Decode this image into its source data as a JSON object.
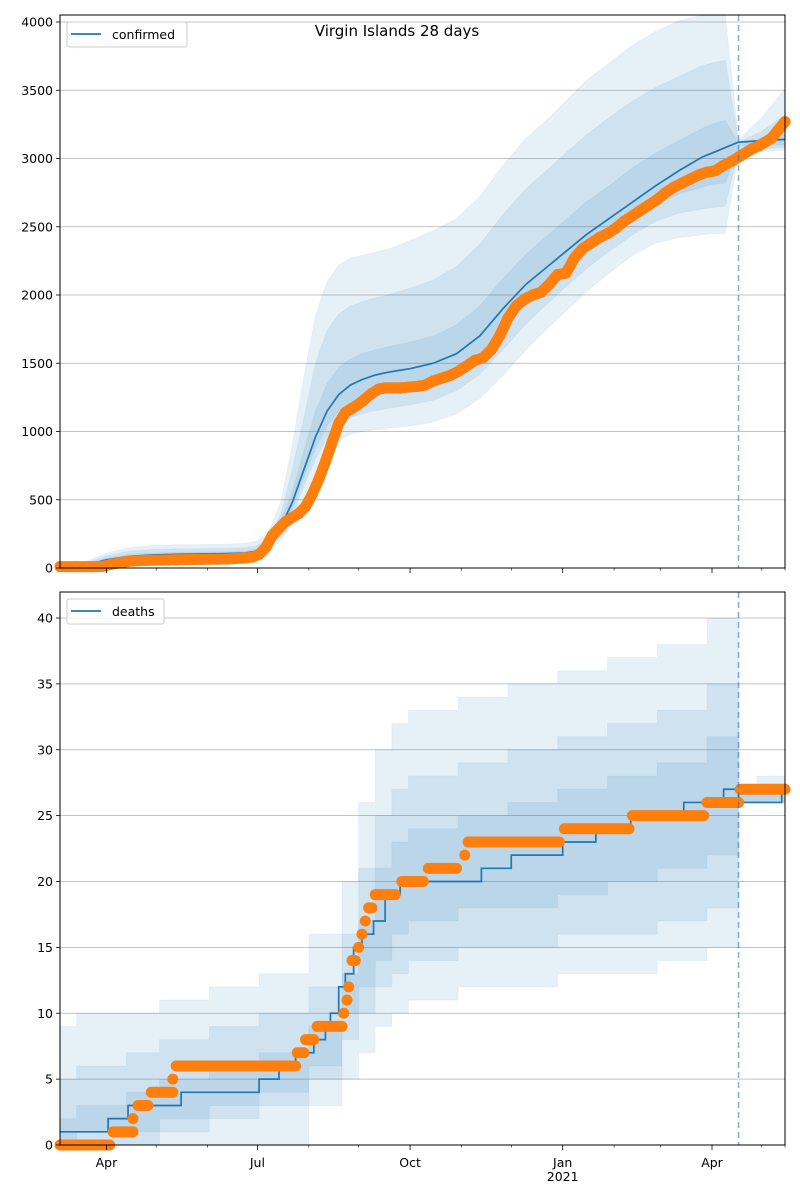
{
  "title": "Virgin Islands 28 days",
  "colors": {
    "model": "#1f77b4",
    "observed": "#ff7f0e",
    "band": "#1f77b4",
    "grid": "#b0b0b0",
    "vline": "#1f77b4"
  },
  "chart_data": [
    {
      "type": "line",
      "panel": "confirmed",
      "title": "Virgin Islands 28 days",
      "legend": [
        "confirmed"
      ],
      "legend_position": "top-left",
      "grid": true,
      "x_unit": "days since 2020-03-04",
      "xlim": [
        0,
        437
      ],
      "ylim": [
        0,
        4050
      ],
      "yticks": [
        0,
        500,
        1000,
        1500,
        2000,
        2500,
        3000,
        3500,
        4000
      ],
      "ytick_labels": [
        "0",
        "500",
        "1000",
        "1500",
        "2000",
        "2500",
        "3000",
        "3500",
        "4000"
      ],
      "forecast_start_day": 409,
      "model": {
        "x": [
          0,
          14,
          28,
          42,
          56,
          70,
          84,
          98,
          112,
          119,
          126,
          133,
          140,
          147,
          154,
          161,
          168,
          175,
          182,
          189,
          196,
          203,
          211,
          225,
          239,
          253,
          267,
          281,
          295,
          303,
          317,
          331,
          345,
          359,
          373,
          387,
          393,
          401,
          409,
          423,
          437
        ],
        "y": [
          10,
          15,
          60,
          85,
          95,
          100,
          103,
          105,
          110,
          125,
          170,
          300,
          480,
          720,
          960,
          1150,
          1270,
          1340,
          1380,
          1410,
          1430,
          1445,
          1460,
          1500,
          1570,
          1700,
          1900,
          2080,
          2220,
          2300,
          2440,
          2560,
          2680,
          2800,
          2910,
          3010,
          3040,
          3080,
          3120,
          3130,
          3140
        ]
      },
      "bands": [
        {
          "level": "outer",
          "lo": [
            0,
            0,
            30,
            55,
            62,
            65,
            68,
            70,
            72,
            85,
            120,
            200,
            320,
            520,
            700,
            840,
            930,
            980,
            1000,
            1010,
            1020,
            1030,
            1040,
            1070,
            1130,
            1240,
            1410,
            1600,
            1770,
            1860,
            2020,
            2160,
            2290,
            2380,
            2420,
            2440,
            2450,
            2450,
            3040,
            3050,
            3060
          ],
          "hi": [
            20,
            40,
            110,
            150,
            165,
            170,
            172,
            174,
            180,
            200,
            270,
            480,
            900,
            1400,
            1850,
            2100,
            2220,
            2270,
            2290,
            2310,
            2330,
            2360,
            2400,
            2470,
            2560,
            2720,
            2950,
            3150,
            3300,
            3400,
            3570,
            3700,
            3830,
            3930,
            4010,
            4050,
            4050,
            4050,
            3140,
            3300,
            3510
          ]
        },
        {
          "level": "mid",
          "lo": [
            2,
            5,
            40,
            65,
            72,
            76,
            79,
            81,
            84,
            98,
            140,
            240,
            380,
            600,
            800,
            950,
            1050,
            1100,
            1130,
            1150,
            1165,
            1180,
            1195,
            1230,
            1300,
            1420,
            1600,
            1790,
            1950,
            2040,
            2190,
            2320,
            2440,
            2540,
            2600,
            2630,
            2640,
            2650,
            3060,
            3070,
            3080
          ],
          "hi": [
            15,
            30,
            90,
            125,
            135,
            140,
            142,
            144,
            148,
            165,
            225,
            390,
            720,
            1100,
            1500,
            1740,
            1860,
            1920,
            1950,
            1975,
            1995,
            2020,
            2050,
            2110,
            2210,
            2370,
            2590,
            2780,
            2930,
            3020,
            3170,
            3300,
            3420,
            3520,
            3600,
            3680,
            3700,
            3720,
            3120,
            3200,
            3320
          ]
        },
        {
          "level": "inner",
          "lo": [
            5,
            10,
            50,
            75,
            83,
            87,
            90,
            92,
            95,
            110,
            155,
            270,
            430,
            660,
            880,
            1040,
            1150,
            1210,
            1250,
            1275,
            1290,
            1305,
            1320,
            1360,
            1430,
            1560,
            1750,
            1930,
            2080,
            2170,
            2310,
            2440,
            2560,
            2660,
            2740,
            2790,
            2810,
            2820,
            3090,
            3095,
            3100
          ],
          "hi": [
            12,
            22,
            72,
            100,
            110,
            114,
            116,
            118,
            124,
            140,
            190,
            340,
            560,
            860,
            1150,
            1350,
            1470,
            1530,
            1570,
            1595,
            1615,
            1635,
            1655,
            1700,
            1780,
            1920,
            2120,
            2300,
            2450,
            2530,
            2680,
            2800,
            2930,
            3040,
            3130,
            3220,
            3250,
            3280,
            3110,
            3150,
            3200
          ]
        }
      ],
      "observed": {
        "x": [
          0,
          10,
          20,
          26,
          30,
          36,
          42,
          50,
          60,
          70,
          80,
          90,
          100,
          110,
          116,
          120,
          124,
          128,
          132,
          136,
          140,
          144,
          148,
          152,
          156,
          160,
          164,
          168,
          172,
          176,
          180,
          184,
          188,
          192,
          196,
          200,
          205,
          210,
          215,
          220,
          225,
          230,
          235,
          240,
          245,
          250,
          255,
          260,
          265,
          270,
          275,
          280,
          285,
          290,
          295,
          300,
          305,
          310,
          315,
          320,
          325,
          330,
          335,
          340,
          345,
          350,
          355,
          360,
          365,
          370,
          375,
          380,
          385,
          390,
          395,
          400,
          405,
          409,
          413,
          417,
          421,
          425,
          429,
          433,
          437
        ],
        "y": [
          10,
          10,
          10,
          12,
          25,
          38,
          50,
          55,
          58,
          60,
          62,
          64,
          66,
          72,
          80,
          100,
          150,
          240,
          290,
          340,
          370,
          400,
          450,
          540,
          650,
          780,
          920,
          1060,
          1140,
          1170,
          1200,
          1240,
          1280,
          1310,
          1320,
          1320,
          1320,
          1325,
          1330,
          1340,
          1370,
          1390,
          1410,
          1440,
          1480,
          1520,
          1540,
          1600,
          1700,
          1830,
          1920,
          1970,
          2000,
          2020,
          2080,
          2150,
          2160,
          2270,
          2340,
          2380,
          2420,
          2450,
          2490,
          2540,
          2580,
          2620,
          2660,
          2700,
          2750,
          2790,
          2820,
          2850,
          2880,
          2900,
          2910,
          2950,
          2980,
          3010,
          3040,
          3070,
          3090,
          3120,
          3150,
          3210,
          3270
        ]
      }
    },
    {
      "type": "line",
      "panel": "deaths",
      "legend": [
        "deaths"
      ],
      "legend_position": "top-left",
      "grid": true,
      "x_unit": "days since 2020-03-04",
      "xlim": [
        0,
        437
      ],
      "ylim": [
        0,
        42
      ],
      "yticks": [
        0,
        5,
        10,
        15,
        20,
        25,
        30,
        35,
        40
      ],
      "ytick_labels": [
        "0",
        "5",
        "10",
        "15",
        "20",
        "25",
        "30",
        "35",
        "40"
      ],
      "xticks": [
        28,
        119,
        211,
        303,
        393
      ],
      "xtick_labels": [
        "Apr",
        "Jul",
        "Oct",
        "Jan\n2021",
        "Apr"
      ],
      "xminor_ticks": [
        58,
        89,
        150,
        180,
        242,
        272,
        334,
        362,
        423
      ],
      "forecast_start_day": 409,
      "model": {
        "x": [
          0,
          29,
          29,
          41,
          41,
          44,
          44,
          58,
          58,
          73,
          73,
          120,
          120,
          132,
          132,
          142,
          142,
          153,
          153,
          160,
          160,
          163,
          163,
          168,
          168,
          172,
          172,
          177,
          177,
          182,
          182,
          189,
          189,
          196,
          196,
          205,
          205,
          254,
          254,
          272,
          272,
          303,
          303,
          323,
          323,
          344,
          344,
          376,
          376,
          400,
          400,
          409,
          409,
          435,
          435,
          437
        ],
        "y": [
          1,
          1,
          2,
          2,
          3,
          3,
          3,
          3,
          3,
          3,
          4,
          4,
          5,
          5,
          6,
          6,
          7,
          7,
          8,
          8,
          9,
          9,
          10,
          10,
          12,
          12,
          13,
          13,
          15,
          15,
          16,
          16,
          17,
          17,
          19,
          19,
          20,
          20,
          21,
          21,
          22,
          22,
          23,
          23,
          24,
          24,
          25,
          25,
          26,
          26,
          27,
          27,
          26,
          26,
          27,
          27
        ]
      },
      "bands": [
        {
          "level": "outer",
          "x": [
            0,
            10,
            40,
            60,
            90,
            120,
            150,
            170,
            180,
            190,
            200,
            210,
            240,
            270,
            300,
            330,
            360,
            390,
            409,
            409,
            420,
            437
          ],
          "lo": [
            0,
            0,
            0,
            0,
            0,
            0,
            3,
            5,
            7,
            9,
            10,
            11,
            12,
            12,
            13,
            13,
            14,
            15,
            16,
            26,
            26,
            26
          ],
          "hi": [
            9,
            10,
            10,
            11,
            12,
            13,
            16,
            20,
            26,
            30,
            32,
            33,
            34,
            35,
            36,
            37,
            38,
            40,
            42,
            27,
            28,
            29
          ]
        },
        {
          "level": "mid",
          "x": [
            0,
            10,
            40,
            60,
            90,
            120,
            150,
            170,
            180,
            190,
            200,
            210,
            240,
            270,
            300,
            330,
            360,
            390,
            409,
            409,
            420,
            437
          ],
          "lo": [
            0,
            0,
            0,
            1,
            2,
            3,
            5,
            8,
            10,
            12,
            13,
            14,
            15,
            15,
            16,
            16,
            17,
            18,
            19,
            26,
            26,
            26
          ],
          "hi": [
            5,
            6,
            7,
            8,
            9,
            10,
            12,
            16,
            21,
            25,
            27,
            28,
            29,
            30,
            31,
            32,
            33,
            35,
            37,
            27,
            27,
            28
          ]
        },
        {
          "level": "inner",
          "x": [
            0,
            10,
            40,
            60,
            90,
            120,
            150,
            170,
            180,
            190,
            200,
            210,
            240,
            270,
            300,
            330,
            360,
            390,
            409,
            409,
            420,
            437
          ],
          "lo": [
            0,
            1,
            1,
            2,
            3,
            4,
            6,
            10,
            12,
            14,
            16,
            17,
            18,
            18,
            19,
            20,
            21,
            22,
            22,
            26,
            26,
            26
          ],
          "hi": [
            2,
            3,
            4,
            5,
            6,
            7,
            9,
            13,
            17,
            21,
            23,
            24,
            25,
            26,
            27,
            28,
            29,
            31,
            33,
            27,
            27,
            27
          ]
        }
      ],
      "observed": {
        "segments": [
          {
            "x0": 0,
            "x1": 30,
            "y": 0
          },
          {
            "x0": 32,
            "x1": 44,
            "y": 1
          },
          {
            "x0": 44,
            "x1": 44,
            "y": 2
          },
          {
            "x0": 47,
            "x1": 53,
            "y": 3
          },
          {
            "x0": 55,
            "x1": 68,
            "y": 4
          },
          {
            "x0": 68,
            "x1": 68,
            "y": 5
          },
          {
            "x0": 70,
            "x1": 142,
            "y": 6
          },
          {
            "x0": 143,
            "x1": 147,
            "y": 7
          },
          {
            "x0": 148,
            "x1": 153,
            "y": 8
          },
          {
            "x0": 155,
            "x1": 170,
            "y": 9
          },
          {
            "x0": 171,
            "x1": 171,
            "y": 10
          },
          {
            "x0": 173,
            "x1": 173,
            "y": 11
          },
          {
            "x0": 174,
            "x1": 174,
            "y": 12
          },
          {
            "x0": 176,
            "x1": 178,
            "y": 14
          },
          {
            "x0": 180,
            "x1": 180,
            "y": 15
          },
          {
            "x0": 182,
            "x1": 182,
            "y": 16
          },
          {
            "x0": 184,
            "x1": 184,
            "y": 17
          },
          {
            "x0": 186,
            "x1": 188,
            "y": 18
          },
          {
            "x0": 190,
            "x1": 202,
            "y": 19
          },
          {
            "x0": 206,
            "x1": 219,
            "y": 20
          },
          {
            "x0": 222,
            "x1": 239,
            "y": 21
          },
          {
            "x0": 244,
            "x1": 244,
            "y": 22
          },
          {
            "x0": 246,
            "x1": 301,
            "y": 23
          },
          {
            "x0": 304,
            "x1": 343,
            "y": 24
          },
          {
            "x0": 345,
            "x1": 388,
            "y": 25
          },
          {
            "x0": 390,
            "x1": 409,
            "y": 26
          },
          {
            "x0": 410,
            "x1": 437,
            "y": 27
          }
        ]
      }
    }
  ]
}
